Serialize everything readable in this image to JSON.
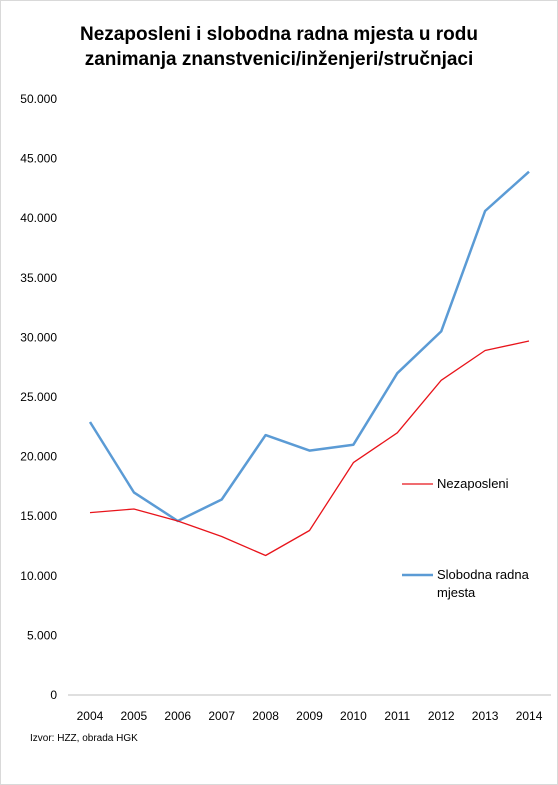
{
  "chart_data": {
    "type": "line",
    "title_lines": [
      "Nezaposleni i slobodna radna mjesta u rodu",
      "zanimanja znanstvenici/inženjeri/stručnjaci"
    ],
    "categories": [
      "2004",
      "2005",
      "2006",
      "2007",
      "2008",
      "2009",
      "2010",
      "2011",
      "2012",
      "2013",
      "2014"
    ],
    "y_ticks": [
      "0",
      "5.000",
      "10.000",
      "15.000",
      "20.000",
      "25.000",
      "30.000",
      "35.000",
      "40.000",
      "45.000",
      "50.000"
    ],
    "ylim": [
      0,
      50000
    ],
    "grid": false,
    "legend_position": "right",
    "series": [
      {
        "name": "Nezaposleni",
        "color": "#e8141b",
        "values": [
          15300,
          15600,
          14600,
          13300,
          11700,
          13800,
          19500,
          22000,
          26400,
          28900,
          29700
        ]
      },
      {
        "name": "Slobodna radna mjesta",
        "legend_lines": [
          "Slobodna radna",
          "mjesta"
        ],
        "color": "#5b9bd5",
        "values": [
          22900,
          17000,
          14600,
          16400,
          21800,
          20500,
          21000,
          27000,
          30500,
          40600,
          43900
        ]
      }
    ]
  },
  "source": "Izvor: HZZ, obrada HGK"
}
